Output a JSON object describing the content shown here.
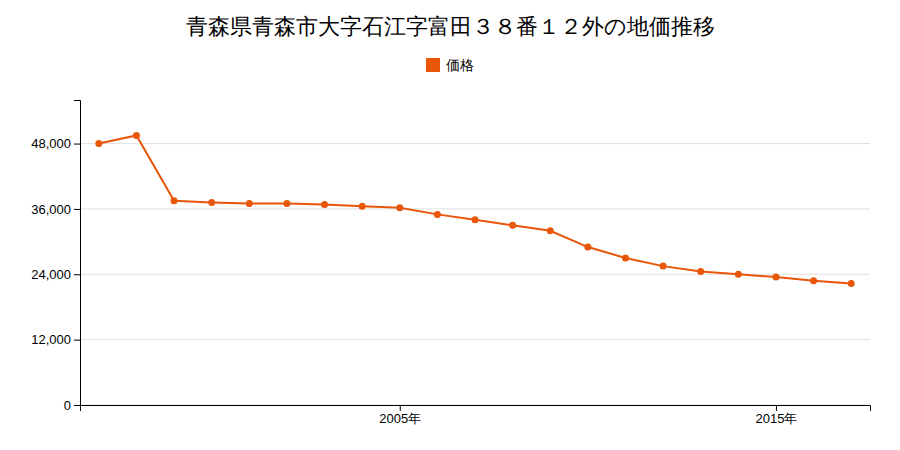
{
  "chart_data": {
    "type": "line",
    "title": "青森県青森市大字石江字富田３８番１２外の地価推移",
    "x": [
      1997,
      1998,
      1999,
      2000,
      2001,
      2002,
      2003,
      2004,
      2005,
      2006,
      2007,
      2008,
      2009,
      2010,
      2011,
      2012,
      2013,
      2014,
      2015,
      2016,
      2017
    ],
    "series": [
      {
        "name": "価格",
        "color": "#e8560a",
        "marker": "circle",
        "values": [
          48000,
          49500,
          37500,
          37200,
          37000,
          37000,
          36800,
          36500,
          36200,
          35000,
          34000,
          33000,
          32000,
          29000,
          27000,
          25500,
          24500,
          24000,
          23500,
          22800,
          22300
        ]
      }
    ],
    "xlim": [
      1996.5,
      2017.5
    ],
    "xticks": [
      {
        "value": 2005,
        "label": "2005年"
      },
      {
        "value": 2015,
        "label": "2015年"
      }
    ],
    "ylim": [
      0,
      56000
    ],
    "yticks": [
      0,
      {
        "value": 12000,
        "label": "12,000"
      },
      {
        "value": 24000,
        "label": "24,000"
      },
      {
        "value": 36000,
        "label": "36,000"
      },
      {
        "value": 48000,
        "label": "48,000"
      }
    ],
    "grid": true,
    "legend": "top"
  }
}
